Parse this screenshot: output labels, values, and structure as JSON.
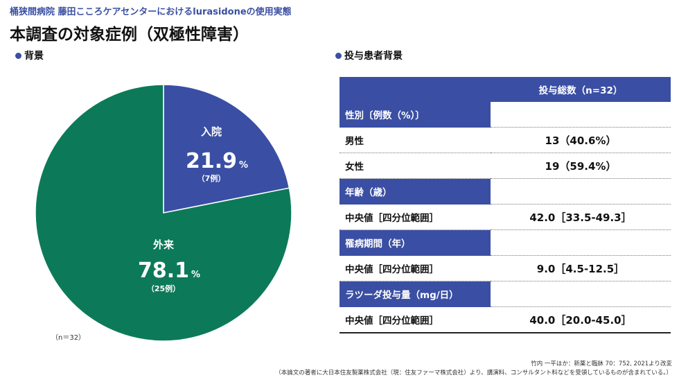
{
  "header": {
    "subtitle": "桶狭間病院 藤田こころケアセンターにおけるlurasidoneの使用実態",
    "title": "本調査の対象症例（双極性障害）"
  },
  "sections": {
    "left_label": "背景",
    "right_label": "投与患者背景"
  },
  "chart_data": {
    "type": "pie",
    "title": "背景",
    "slices": [
      {
        "label": "入院",
        "percent": 21.9,
        "percent_text": "21.9",
        "unit": "%",
        "count_text": "（7例）",
        "color": "#3a4fa3"
      },
      {
        "label": "外来",
        "percent": 78.1,
        "percent_text": "78.1",
        "unit": "%",
        "count_text": "（25例）",
        "color": "#0c7a58"
      }
    ],
    "note": "（n＝32）"
  },
  "table": {
    "header": "投与総数（n=32）",
    "sex_category": "性別〔例数（%）〕",
    "male_label": "男性",
    "male_value": "13（40.6%）",
    "female_label": "女性",
    "female_value": "19（59.4%）",
    "age_category": "年齢（歳）",
    "age_label": "中央値［四分位範囲］",
    "age_value": "42.0［33.5-49.3］",
    "duration_category": "罹病期間（年）",
    "duration_label": "中央値［四分位範囲］",
    "duration_value": "9.0［4.5-12.5］",
    "dose_category": "ラツーダ投与量（mg/日）",
    "dose_label": "中央値［四分位範囲］",
    "dose_value": "40.0［20.0-45.0］"
  },
  "footnotes": {
    "citation": "竹内 一平ほか：新薬と臨牀 70：752, 2021より改変",
    "disclosure": "（本論文の著者に大日本住友製薬株式会社（現：住友ファーマ株式会社）より、講演料、コンサルタント料などを受領しているものが含まれている。）"
  },
  "colors": {
    "accent": "#3a4fa3",
    "outpatient": "#0c7a58"
  }
}
